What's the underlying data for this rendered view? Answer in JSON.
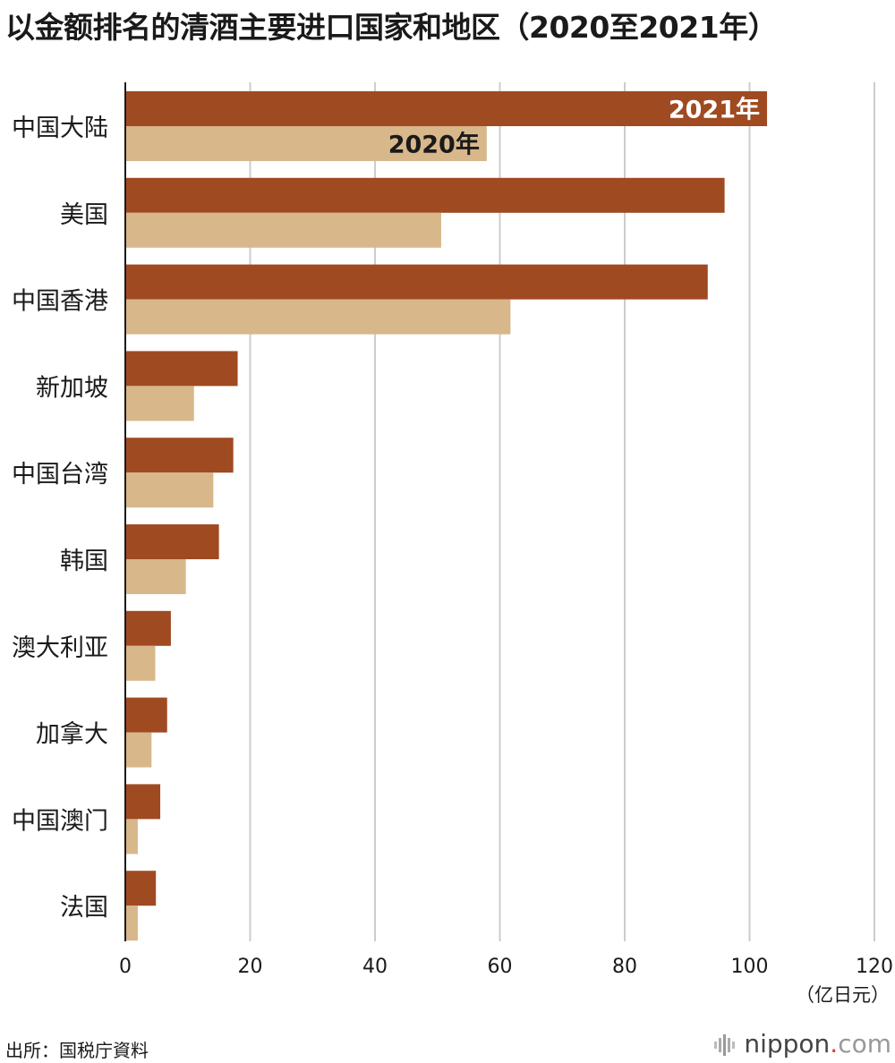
{
  "title": "以金额排名的清酒主要进口国家和地区（2020至2021年）",
  "unit": "（亿日元）",
  "source": "出所：国税庁資料",
  "logo": {
    "main": "nippon",
    "dot": ".",
    "com": "com"
  },
  "colors": {
    "series_2021": "#a04a22",
    "series_2020": "#d8b78a",
    "grid": "#cccccc",
    "axis": "#1a1a1a"
  },
  "chart_data": {
    "type": "bar",
    "orientation": "horizontal",
    "categories": [
      "中国大陆",
      "美国",
      "中国香港",
      "新加坡",
      "中国台湾",
      "韩国",
      "澳大利亚",
      "加拿大",
      "中国澳门",
      "法国"
    ],
    "series": [
      {
        "name": "2021年",
        "values": [
          102.8,
          96.0,
          93.3,
          18.0,
          17.3,
          15.0,
          7.3,
          6.7,
          5.6,
          4.9
        ]
      },
      {
        "name": "2020年",
        "values": [
          57.9,
          50.6,
          61.7,
          11.0,
          14.1,
          9.7,
          4.8,
          4.2,
          2.0,
          2.0
        ]
      }
    ],
    "xlim": [
      0,
      120
    ],
    "xticks": [
      "0",
      "20",
      "40",
      "60",
      "80",
      "100",
      "120"
    ],
    "grid": true,
    "legend": "inline labels on first category bars"
  }
}
